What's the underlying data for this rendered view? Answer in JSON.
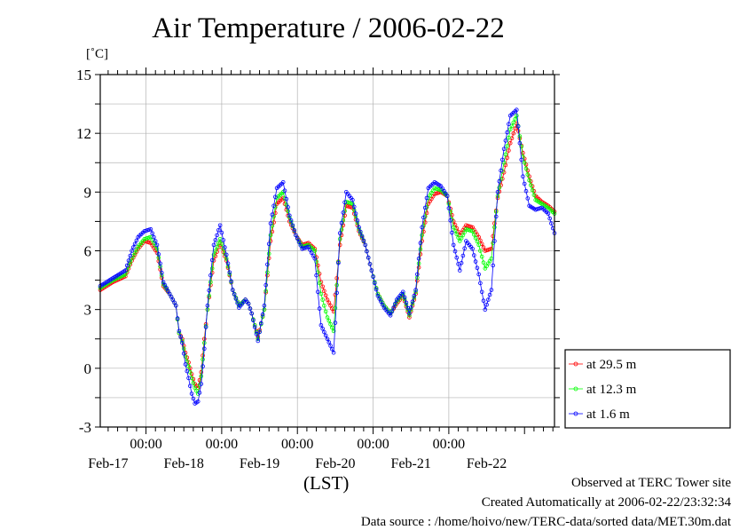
{
  "chart_data": {
    "type": "line",
    "title": "Air Temperature / 2006-02-22",
    "ylabel": "[˚C]",
    "xlabel": "(LST)",
    "ylim": [
      -3,
      15
    ],
    "yticks": [
      "15",
      "12",
      "9",
      "6",
      "3",
      "0",
      "-3"
    ],
    "ytick_values": [
      15,
      12,
      9,
      6,
      3,
      0,
      -3
    ],
    "xlim_hours": [
      0,
      144
    ],
    "xtick_time": "00:00",
    "xtick_dates": [
      "Feb-17",
      "Feb-18",
      "Feb-19",
      "Feb-20",
      "Feb-21",
      "Feb-22"
    ],
    "legend_position": "right-bottom-outside",
    "grid": true,
    "x_knots_hours": [
      0,
      4,
      8,
      10,
      12,
      14,
      16,
      18,
      20,
      22,
      24,
      25,
      26,
      27,
      28,
      29,
      30,
      31,
      32,
      33,
      34,
      36,
      38,
      40,
      42,
      44,
      46,
      47,
      48,
      49,
      50,
      52,
      54,
      56,
      58,
      60,
      62,
      64,
      66,
      68,
      70,
      72,
      74,
      76,
      78,
      80,
      82,
      84,
      86,
      88,
      90,
      92,
      94,
      96,
      98,
      100,
      102,
      104,
      106,
      108,
      110,
      112,
      114,
      116,
      118,
      120,
      122,
      124,
      126,
      128,
      130,
      132,
      134,
      136,
      138,
      140,
      142,
      144
    ],
    "series": [
      {
        "name": "at 29.5 m",
        "color": "#ff0000",
        "values": [
          4.0,
          4.4,
          4.7,
          5.5,
          6.1,
          6.5,
          6.4,
          5.9,
          4.2,
          3.8,
          3.2,
          1.8,
          1.5,
          0.8,
          0.3,
          -0.3,
          -0.8,
          -1.0,
          -0.2,
          1.5,
          3.0,
          5.5,
          6.4,
          5.5,
          4.0,
          3.2,
          3.5,
          3.3,
          2.8,
          2.2,
          1.6,
          3.0,
          6.5,
          8.4,
          8.7,
          7.5,
          6.8,
          6.3,
          6.4,
          6.1,
          4.4,
          3.5,
          2.9,
          6.3,
          8.3,
          8.2,
          7.0,
          6.3,
          5.0,
          3.8,
          3.2,
          2.8,
          3.3,
          3.7,
          2.6,
          3.8,
          6.5,
          8.4,
          8.9,
          9.0,
          8.8,
          7.5,
          6.8,
          7.3,
          7.2,
          6.7,
          6.0,
          6.1,
          8.7,
          10.0,
          11.5,
          12.5,
          11.0,
          9.8,
          8.8,
          8.5,
          8.3,
          8.0
        ]
      },
      {
        "name": "at 12.3 m",
        "color": "#00ff00",
        "values": [
          4.1,
          4.5,
          4.8,
          5.6,
          6.2,
          6.6,
          6.7,
          6.1,
          4.3,
          3.8,
          3.2,
          1.8,
          1.4,
          0.6,
          0.1,
          -0.5,
          -1.0,
          -1.3,
          -0.4,
          1.3,
          3.0,
          5.8,
          6.6,
          5.6,
          4.0,
          3.2,
          3.5,
          3.3,
          2.8,
          2.2,
          1.5,
          3.0,
          6.8,
          8.7,
          9.0,
          7.7,
          6.8,
          6.2,
          6.3,
          6.0,
          3.8,
          2.6,
          1.9,
          6.6,
          8.5,
          8.4,
          7.1,
          6.3,
          5.0,
          3.8,
          3.2,
          2.8,
          3.4,
          3.8,
          2.7,
          3.9,
          6.8,
          8.7,
          9.2,
          9.1,
          8.8,
          7.2,
          6.5,
          7.1,
          7.0,
          6.3,
          5.1,
          5.6,
          8.8,
          10.5,
          12.2,
          12.9,
          10.8,
          9.6,
          8.6,
          8.4,
          8.2,
          7.9
        ]
      },
      {
        "name": "at 1.6 m",
        "color": "#0000ff",
        "values": [
          4.2,
          4.6,
          5.0,
          6.0,
          6.7,
          7.0,
          7.1,
          6.3,
          4.4,
          3.8,
          3.2,
          1.9,
          1.3,
          0.2,
          -0.5,
          -1.3,
          -1.8,
          -1.7,
          -0.8,
          1.0,
          3.2,
          6.3,
          7.3,
          5.8,
          4.0,
          3.1,
          3.5,
          3.3,
          2.8,
          2.1,
          1.4,
          3.2,
          7.4,
          9.2,
          9.5,
          7.8,
          6.8,
          6.1,
          6.2,
          5.6,
          2.2,
          1.5,
          0.8,
          6.9,
          9.0,
          8.6,
          7.2,
          6.3,
          5.0,
          3.7,
          3.1,
          2.7,
          3.5,
          3.9,
          2.8,
          4.0,
          7.2,
          9.2,
          9.5,
          9.3,
          8.8,
          6.3,
          5.0,
          6.5,
          6.1,
          4.8,
          3.0,
          4.0,
          9.0,
          11.2,
          12.9,
          13.2,
          9.8,
          8.3,
          8.1,
          8.2,
          7.9,
          6.9
        ]
      }
    ]
  },
  "legend": [
    {
      "label": "at 29.5 m",
      "color": "#ff0000"
    },
    {
      "label": "at 12.3 m",
      "color": "#00ff00"
    },
    {
      "label": "at 1.6 m",
      "color": "#0000ff"
    }
  ],
  "footer": {
    "observed": "Observed at TERC Tower site",
    "created": "Created Automatically at 2006-02-22/23:32:34",
    "source": "Data source : /home/hoivo/new/TERC-data/sorted  data/MET.30m.dat"
  }
}
